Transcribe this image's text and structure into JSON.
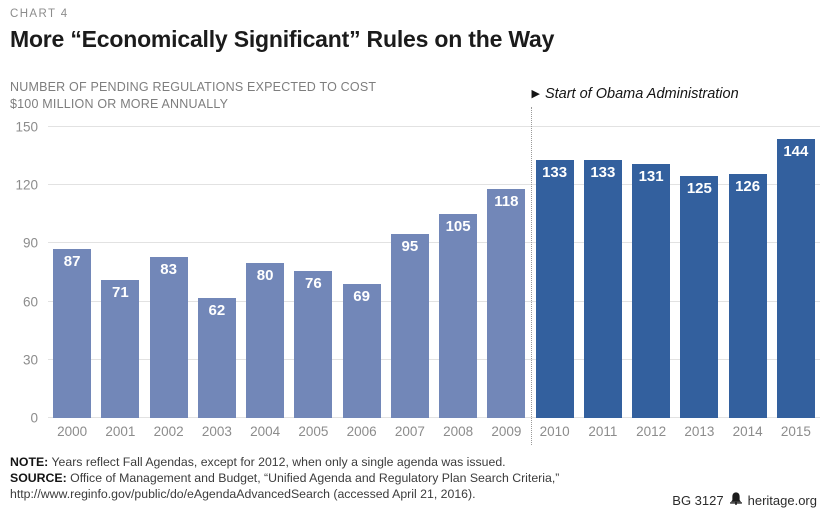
{
  "header": {
    "chart_label": "CHART 4",
    "title": "More “Economically Significant” Rules on the Way",
    "subtitle_line1": "NUMBER OF PENDING REGULATIONS EXPECTED TO COST",
    "subtitle_line2": "$100 MILLION OR MORE ANNUALLY"
  },
  "annotation": {
    "marker": "▶",
    "text": "Start of Obama Administration"
  },
  "chart_data": {
    "type": "bar",
    "categories": [
      "2000",
      "2001",
      "2002",
      "2003",
      "2004",
      "2005",
      "2006",
      "2007",
      "2008",
      "2009",
      "2010",
      "2011",
      "2012",
      "2013",
      "2014",
      "2015"
    ],
    "values": [
      87,
      71,
      83,
      62,
      80,
      76,
      69,
      95,
      105,
      118,
      133,
      133,
      131,
      125,
      126,
      144
    ],
    "title": "More “Economically Significant” Rules on the Way",
    "xlabel": "",
    "ylabel": "Number of pending regulations expected to cost $100 million or more annually",
    "ylim": [
      0,
      150
    ],
    "yticks": [
      0,
      30,
      60,
      90,
      120,
      150
    ],
    "grid": true,
    "legend": "none",
    "value_labels": "inside-top-white",
    "split_index": 10,
    "split_label": "Start of Obama Administration",
    "color_before_split": "#7287b8",
    "color_after_split": "#33609e",
    "gridline_color": "#e2e2e2",
    "tick_color": "#8c8c8c"
  },
  "footnotes": {
    "note_label": "NOTE:",
    "note_text": " Years reflect Fall Agendas, except for 2012, when only a single agenda was issued.",
    "source_label": "SOURCE:",
    "source_text": " Office of Management and Budget, “Unified Agenda and Regulatory Plan Search Criteria,”",
    "source_line2": "http://www.reginfo.gov/public/do/eAgendaAdvancedSearch (accessed April 21, 2016)."
  },
  "footer": {
    "doc_id": "BG 3127",
    "brand": "heritage.org",
    "icon": "liberty-bell-icon"
  }
}
